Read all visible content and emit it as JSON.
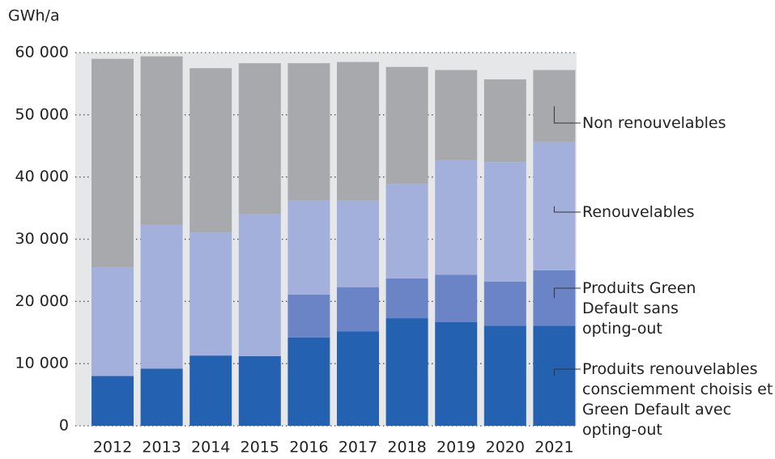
{
  "chart_data": {
    "type": "stacked-bar",
    "y_label": "GWh/a",
    "categories": [
      "2012",
      "2013",
      "2014",
      "2015",
      "2016",
      "2017",
      "2018",
      "2019",
      "2020",
      "2021"
    ],
    "series": [
      {
        "name": "Produits renouvelables consciemment choisis et Green Default avec opting-out",
        "color": "#2461b0",
        "values": [
          8000,
          9200,
          11300,
          11200,
          14200,
          15200,
          17300,
          16700,
          16100,
          16100
        ]
      },
      {
        "name": "Produits Green Default sans opting-out",
        "color": "#6b84c6",
        "values": [
          0,
          0,
          0,
          0,
          6900,
          7100,
          6400,
          7600,
          7100,
          8900
        ]
      },
      {
        "name": "Renouvelables",
        "color": "#a3b0dc",
        "values": [
          17500,
          23100,
          19800,
          22800,
          15100,
          13900,
          15200,
          18400,
          19200,
          20600
        ]
      },
      {
        "name": "Non renouvelables",
        "color": "#a8a9ad",
        "values": [
          33500,
          27100,
          26400,
          24300,
          22100,
          22300,
          18800,
          14500,
          13300,
          11600
        ]
      }
    ],
    "ylim": [
      0,
      60000
    ],
    "yticks": [
      0,
      {
        "value": 10000,
        "label": "10 000"
      },
      {
        "value": 20000,
        "label": "20 000"
      },
      {
        "value": 30000,
        "label": "30 000"
      },
      {
        "value": 40000,
        "label": "40 000"
      },
      {
        "value": 50000,
        "label": "50 000"
      },
      {
        "value": 60000,
        "label": "60 000"
      }
    ],
    "grid": true,
    "plot_background": "#e6e7e9"
  }
}
